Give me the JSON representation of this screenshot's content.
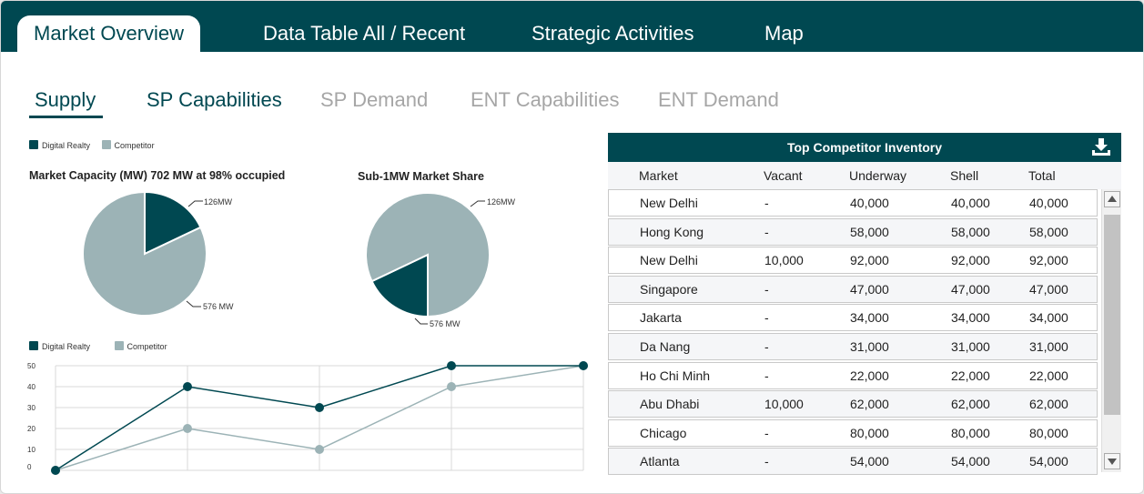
{
  "top_tabs": [
    "Market Overview",
    "Data Table All / Recent",
    "Strategic Activities",
    "Map"
  ],
  "sub_tabs": [
    "Supply",
    "SP Capabilities",
    "SP Demand",
    "ENT Capabilities",
    "ENT Demand"
  ],
  "legend": {
    "digital_realty": "Digital Realty",
    "competitor": "Competitor"
  },
  "colors": {
    "brand": "#004851",
    "competitor": "#9cb3b6",
    "inactive": "#a6a6a6"
  },
  "pie_charts": [
    {
      "title": "Market Capacity (MW) 702 MW at 98% occupied",
      "dr_label": "126MW",
      "comp_label": "576 MW"
    },
    {
      "title": "Sub-1MW Market Share",
      "dr_label": "126MW",
      "comp_label": "576 MW"
    }
  ],
  "chart_data": [
    {
      "type": "pie",
      "title": "Market Capacity (MW) 702 MW at 98% occupied",
      "slices": [
        {
          "label": "126MW",
          "value": 126
        },
        {
          "label": "576 MW",
          "value": 576
        }
      ]
    },
    {
      "type": "pie",
      "title": "Sub-1MW Market Share",
      "slices": [
        {
          "label": "126MW",
          "value": 126
        },
        {
          "label": "576 MW",
          "value": 576
        }
      ]
    },
    {
      "type": "line",
      "yticks": [
        "50",
        "40",
        "30",
        "20",
        "10",
        "0"
      ],
      "ylim": [
        0,
        50
      ],
      "series": [
        {
          "name": "Digital Realty",
          "values": [
            0,
            40,
            30,
            50,
            50
          ]
        },
        {
          "name": "Competitor",
          "values": [
            0,
            20,
            10,
            40,
            50
          ]
        }
      ],
      "grid": true,
      "legend": "top-left"
    }
  ],
  "table": {
    "title": "Top Competitor Inventory",
    "download_icon": "download-icon",
    "columns": [
      "Market",
      "Vacant",
      "Underway",
      "Shell",
      "Total"
    ],
    "rows": [
      [
        "New Delhi",
        "-",
        "40,000",
        "40,000",
        "40,000"
      ],
      [
        "Hong Kong",
        "-",
        "58,000",
        "58,000",
        "58,000"
      ],
      [
        "New Delhi",
        "10,000",
        "92,000",
        "92,000",
        "92,000"
      ],
      [
        "Singapore",
        "-",
        "47,000",
        "47,000",
        "47,000"
      ],
      [
        "Jakarta",
        "-",
        "34,000",
        "34,000",
        "34,000"
      ],
      [
        "Da Nang",
        "-",
        "31,000",
        "31,000",
        "31,000"
      ],
      [
        "Ho Chi Minh",
        "-",
        "22,000",
        "22,000",
        "22,000"
      ],
      [
        "Abu Dhabi",
        "10,000",
        "62,000",
        "62,000",
        "62,000"
      ],
      [
        "Chicago",
        "-",
        "80,000",
        "80,000",
        "80,000"
      ],
      [
        "Atlanta",
        "-",
        "54,000",
        "54,000",
        "54,000"
      ]
    ]
  }
}
